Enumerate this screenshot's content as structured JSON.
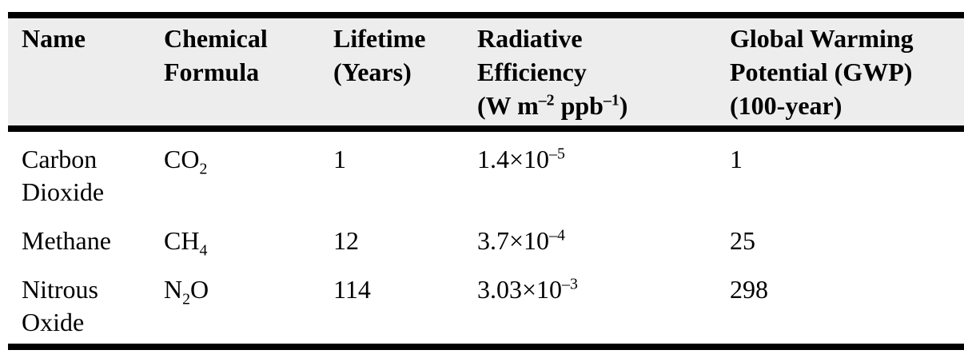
{
  "colors": {
    "header_background": "#ededed",
    "rule": "#000000",
    "text": "#000000",
    "page_background": "#ffffff"
  },
  "table": {
    "header": {
      "cells": [
        [
          {
            "t": "Name"
          }
        ],
        [
          {
            "t": "Chemical"
          },
          {
            "br": 1
          },
          {
            "t": "Formula"
          }
        ],
        [
          {
            "t": "Lifetime"
          },
          {
            "br": 1
          },
          {
            "t": "(Years)"
          }
        ],
        [
          {
            "t": "Radiative"
          },
          {
            "br": 1
          },
          {
            "t": "Efficiency"
          },
          {
            "br": 1
          },
          {
            "t": "(W m"
          },
          {
            "sup": "–2"
          },
          {
            "t": " ppb"
          },
          {
            "sup": "–1"
          },
          {
            "t": ")"
          }
        ],
        [
          {
            "t": "Global Warming"
          },
          {
            "br": 1
          },
          {
            "t": "Potential (GWP)"
          },
          {
            "br": 1
          },
          {
            "t": "(100-year)"
          }
        ]
      ]
    },
    "rows": [
      [
        [
          {
            "t": "Carbon Dioxide"
          }
        ],
        [
          {
            "t": "CO"
          },
          {
            "sub": "2"
          }
        ],
        [
          {
            "t": "1"
          }
        ],
        [
          {
            "t": "1.4×10"
          },
          {
            "sup": "–5"
          }
        ],
        [
          {
            "t": "1"
          }
        ]
      ],
      [
        [
          {
            "t": "Methane"
          }
        ],
        [
          {
            "t": "CH"
          },
          {
            "sub": "4"
          }
        ],
        [
          {
            "t": "12"
          }
        ],
        [
          {
            "t": "3.7×10"
          },
          {
            "sup": "–4"
          }
        ],
        [
          {
            "t": "25"
          }
        ]
      ],
      [
        [
          {
            "t": "Nitrous Oxide"
          }
        ],
        [
          {
            "t": "N"
          },
          {
            "sub": "2"
          },
          {
            "t": "O"
          }
        ],
        [
          {
            "t": "114"
          }
        ],
        [
          {
            "t": "3.03×10"
          },
          {
            "sup": "–3"
          }
        ],
        [
          {
            "t": "298"
          }
        ]
      ]
    ]
  },
  "chart_data": {
    "type": "table",
    "title": "",
    "columns": [
      "Name",
      "Chemical Formula",
      "Lifetime (Years)",
      "Radiative Efficiency (W m⁻² ppb⁻¹)",
      "Global Warming Potential (GWP) (100-year)"
    ],
    "rows": [
      [
        "Carbon Dioxide",
        "CO₂",
        "1",
        "1.4×10⁻⁵",
        "1"
      ],
      [
        "Methane",
        "CH₄",
        "12",
        "3.7×10⁻⁴",
        "25"
      ],
      [
        "Nitrous Oxide",
        "N₂O",
        "114",
        "3.03×10⁻³",
        "298"
      ]
    ]
  }
}
